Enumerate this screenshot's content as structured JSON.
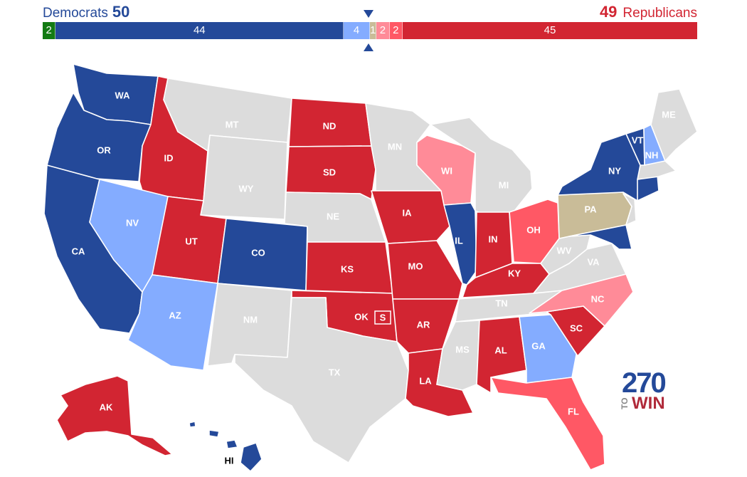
{
  "header": {
    "dem_label": "Democrats",
    "dem_total": "50",
    "rep_total": "49",
    "rep_label": "Republicans"
  },
  "colors": {
    "safe_dem": "#244999",
    "lean_dem": "#84acff",
    "tossup": "#c9bc98",
    "lean_rep": "#ff8b98",
    "likely_rep": "#ff5865",
    "safe_rep": "#d22532",
    "independent": "#137b13",
    "no_race": "#dcdcdc"
  },
  "seat_bar": [
    {
      "label": "2",
      "value": 2,
      "color": "#137b13"
    },
    {
      "label": "44",
      "value": 44,
      "color": "#244999"
    },
    {
      "label": "4",
      "value": 4,
      "color": "#84acff"
    },
    {
      "label": "1",
      "value": 1,
      "color": "#c9bc98"
    },
    {
      "label": "2",
      "value": 2,
      "color": "#ff8b98"
    },
    {
      "label": "2",
      "value": 2,
      "color": "#ff5865"
    },
    {
      "label": "45",
      "value": 45,
      "color": "#d22532"
    }
  ],
  "states": {
    "WA": {
      "label": "WA",
      "rating": "safe_dem"
    },
    "OR": {
      "label": "OR",
      "rating": "safe_dem"
    },
    "CA": {
      "label": "CA",
      "rating": "safe_dem"
    },
    "ID": {
      "label": "ID",
      "rating": "safe_rep"
    },
    "NV": {
      "label": "NV",
      "rating": "lean_dem"
    },
    "MT": {
      "label": "MT",
      "rating": "no_race"
    },
    "WY": {
      "label": "WY",
      "rating": "no_race"
    },
    "UT": {
      "label": "UT",
      "rating": "safe_rep"
    },
    "AZ": {
      "label": "AZ",
      "rating": "lean_dem"
    },
    "CO": {
      "label": "CO",
      "rating": "safe_dem"
    },
    "NM": {
      "label": "NM",
      "rating": "no_race"
    },
    "ND": {
      "label": "ND",
      "rating": "safe_rep"
    },
    "SD": {
      "label": "SD",
      "rating": "safe_rep"
    },
    "NE": {
      "label": "NE",
      "rating": "no_race"
    },
    "KS": {
      "label": "KS",
      "rating": "safe_rep"
    },
    "OK": {
      "label": "OK",
      "rating": "safe_rep"
    },
    "TX": {
      "label": "TX",
      "rating": "no_race"
    },
    "MN": {
      "label": "MN",
      "rating": "no_race"
    },
    "IA": {
      "label": "IA",
      "rating": "safe_rep"
    },
    "MO": {
      "label": "MO",
      "rating": "safe_rep"
    },
    "AR": {
      "label": "AR",
      "rating": "safe_rep"
    },
    "LA": {
      "label": "LA",
      "rating": "safe_rep"
    },
    "WI": {
      "label": "WI",
      "rating": "lean_rep"
    },
    "IL": {
      "label": "IL",
      "rating": "safe_dem"
    },
    "MI": {
      "label": "MI",
      "rating": "no_race"
    },
    "IN": {
      "label": "IN",
      "rating": "safe_rep"
    },
    "OH": {
      "label": "OH",
      "rating": "likely_rep"
    },
    "KY": {
      "label": "KY",
      "rating": "safe_rep"
    },
    "TN": {
      "label": "TN",
      "rating": "no_race"
    },
    "MS": {
      "label": "MS",
      "rating": "no_race"
    },
    "AL": {
      "label": "AL",
      "rating": "safe_rep"
    },
    "GA": {
      "label": "GA",
      "rating": "lean_dem"
    },
    "FL": {
      "label": "FL",
      "rating": "likely_rep"
    },
    "SC": {
      "label": "SC",
      "rating": "safe_rep"
    },
    "NC": {
      "label": "NC",
      "rating": "lean_rep"
    },
    "VA": {
      "label": "VA",
      "rating": "no_race"
    },
    "WV": {
      "label": "WV",
      "rating": "no_race"
    },
    "PA": {
      "label": "PA",
      "rating": "tossup"
    },
    "NY": {
      "label": "NY",
      "rating": "safe_dem"
    },
    "VT": {
      "label": "VT",
      "rating": "safe_dem"
    },
    "NH": {
      "label": "NH",
      "rating": "lean_dem"
    },
    "ME": {
      "label": "ME",
      "rating": "no_race"
    },
    "AK": {
      "label": "AK",
      "rating": "safe_rep"
    },
    "HI": {
      "label": "HI",
      "rating": "safe_dem"
    }
  },
  "special_marker": "S",
  "logo": {
    "number": "270",
    "to": "TO",
    "win": "WIN"
  }
}
